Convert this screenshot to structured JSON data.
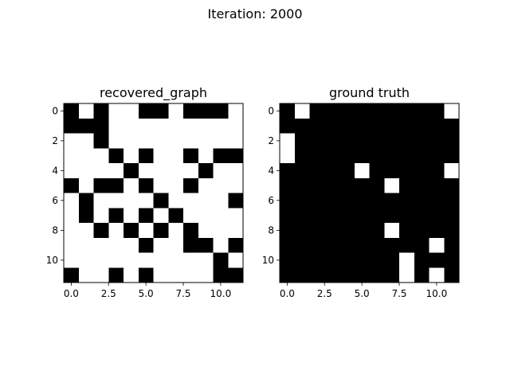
{
  "figure": {
    "suptitle": "Iteration: 2000"
  },
  "chart_data": [
    {
      "type": "heatmap",
      "title": "recovered_graph",
      "xlabel": "",
      "ylabel": "",
      "colormap": {
        "0": "#ffffff",
        "1": "#000000"
      },
      "xlim": [
        -0.5,
        11.5
      ],
      "ylim": [
        -0.5,
        11.5
      ],
      "y_inverted": true,
      "xticks": [
        0.0,
        2.5,
        5.0,
        7.5,
        10.0
      ],
      "xtick_labels": [
        "0.0",
        "2.5",
        "5.0",
        "7.5",
        "10.0"
      ],
      "yticks": [
        0,
        2,
        4,
        6,
        8,
        10
      ],
      "ytick_labels": [
        "0",
        "2",
        "4",
        "6",
        "8",
        "10"
      ],
      "grid": false,
      "values": [
        [
          1,
          0,
          1,
          0,
          0,
          1,
          1,
          0,
          1,
          1,
          1,
          0
        ],
        [
          1,
          1,
          1,
          0,
          0,
          0,
          0,
          0,
          0,
          0,
          0,
          0
        ],
        [
          0,
          0,
          1,
          0,
          0,
          0,
          0,
          0,
          0,
          0,
          0,
          0
        ],
        [
          0,
          0,
          0,
          1,
          0,
          1,
          0,
          0,
          1,
          0,
          1,
          1
        ],
        [
          0,
          0,
          0,
          0,
          1,
          0,
          0,
          0,
          0,
          1,
          0,
          0
        ],
        [
          1,
          0,
          1,
          1,
          0,
          1,
          0,
          0,
          1,
          0,
          0,
          0
        ],
        [
          0,
          1,
          0,
          0,
          0,
          0,
          1,
          0,
          0,
          0,
          0,
          1
        ],
        [
          0,
          1,
          0,
          1,
          0,
          1,
          0,
          1,
          0,
          0,
          0,
          0
        ],
        [
          0,
          0,
          1,
          0,
          1,
          0,
          1,
          0,
          1,
          0,
          0,
          0
        ],
        [
          0,
          0,
          0,
          0,
          0,
          1,
          0,
          0,
          1,
          1,
          0,
          1
        ],
        [
          0,
          0,
          0,
          0,
          0,
          0,
          0,
          0,
          0,
          0,
          1,
          0
        ],
        [
          1,
          0,
          0,
          1,
          0,
          1,
          0,
          0,
          0,
          0,
          1,
          1
        ]
      ]
    },
    {
      "type": "heatmap",
      "title": "ground truth",
      "xlabel": "",
      "ylabel": "",
      "colormap": {
        "0": "#ffffff",
        "1": "#000000"
      },
      "xlim": [
        -0.5,
        11.5
      ],
      "ylim": [
        -0.5,
        11.5
      ],
      "y_inverted": true,
      "xticks": [
        0.0,
        2.5,
        5.0,
        7.5,
        10.0
      ],
      "xtick_labels": [
        "0.0",
        "2.5",
        "5.0",
        "7.5",
        "10.0"
      ],
      "yticks": [
        0,
        2,
        4,
        6,
        8,
        10
      ],
      "ytick_labels": [
        "0",
        "2",
        "4",
        "6",
        "8",
        "10"
      ],
      "grid": false,
      "values": [
        [
          1,
          0,
          1,
          1,
          1,
          1,
          1,
          1,
          1,
          1,
          1,
          0
        ],
        [
          1,
          1,
          1,
          1,
          1,
          1,
          1,
          1,
          1,
          1,
          1,
          1
        ],
        [
          0,
          1,
          1,
          1,
          1,
          1,
          1,
          1,
          1,
          1,
          1,
          1
        ],
        [
          0,
          1,
          1,
          1,
          1,
          1,
          1,
          1,
          1,
          1,
          1,
          1
        ],
        [
          1,
          1,
          1,
          1,
          1,
          0,
          1,
          1,
          1,
          1,
          1,
          0
        ],
        [
          1,
          1,
          1,
          1,
          1,
          1,
          1,
          0,
          1,
          1,
          1,
          1
        ],
        [
          1,
          1,
          1,
          1,
          1,
          1,
          1,
          1,
          1,
          1,
          1,
          1
        ],
        [
          1,
          1,
          1,
          1,
          1,
          1,
          1,
          1,
          1,
          1,
          1,
          1
        ],
        [
          1,
          1,
          1,
          1,
          1,
          1,
          1,
          0,
          1,
          1,
          1,
          1
        ],
        [
          1,
          1,
          1,
          1,
          1,
          1,
          1,
          1,
          1,
          1,
          0,
          1
        ],
        [
          1,
          1,
          1,
          1,
          1,
          1,
          1,
          1,
          0,
          1,
          1,
          1
        ],
        [
          1,
          1,
          1,
          1,
          1,
          1,
          1,
          1,
          0,
          1,
          0,
          1
        ]
      ]
    }
  ]
}
